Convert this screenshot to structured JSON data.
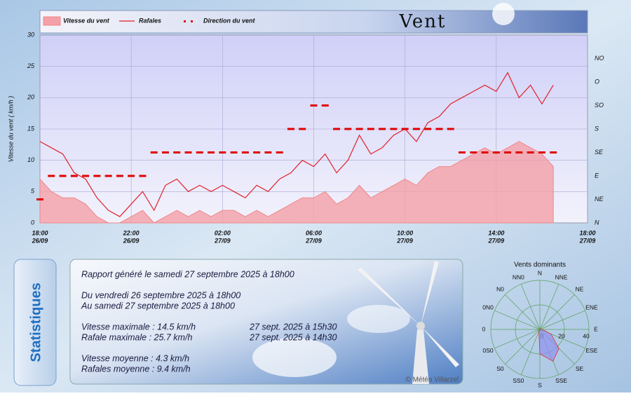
{
  "chart_data": [
    {
      "type": "wind",
      "title": "Vent",
      "ylabel": "Vitesse du vent ( km/h )",
      "ylim": [
        0,
        30
      ],
      "yticks": [
        0,
        5,
        10,
        15,
        20,
        25,
        30
      ],
      "y2ticks": [
        "N",
        "NE",
        "E",
        "SE",
        "S",
        "SO",
        "O",
        "NO"
      ],
      "grid": true,
      "xticks": [
        {
          "time": "18:00",
          "date": "26/09"
        },
        {
          "time": "22:00",
          "date": "26/09"
        },
        {
          "time": "02:00",
          "date": "27/09"
        },
        {
          "time": "06:00",
          "date": "27/09"
        },
        {
          "time": "10:00",
          "date": "27/09"
        },
        {
          "time": "14:00",
          "date": "27/09"
        },
        {
          "time": "18:00",
          "date": "27/09"
        }
      ],
      "x": [
        "26/09 18:00",
        "26/09 18:30",
        "26/09 19:00",
        "26/09 19:30",
        "26/09 20:00",
        "26/09 20:30",
        "26/09 21:00",
        "26/09 21:30",
        "26/09 22:00",
        "26/09 22:30",
        "26/09 23:00",
        "26/09 23:30",
        "27/09 00:00",
        "27/09 00:30",
        "27/09 01:00",
        "27/09 01:30",
        "27/09 02:00",
        "27/09 02:30",
        "27/09 03:00",
        "27/09 03:30",
        "27/09 04:00",
        "27/09 04:30",
        "27/09 05:00",
        "27/09 05:30",
        "27/09 06:00",
        "27/09 06:30",
        "27/09 07:00",
        "27/09 07:30",
        "27/09 08:00",
        "27/09 08:30",
        "27/09 09:00",
        "27/09 09:30",
        "27/09 10:00",
        "27/09 10:30",
        "27/09 11:00",
        "27/09 11:30",
        "27/09 12:00",
        "27/09 12:30",
        "27/09 13:00",
        "27/09 13:30",
        "27/09 14:00",
        "27/09 14:30",
        "27/09 15:00",
        "27/09 15:30",
        "27/09 16:00",
        "27/09 16:30"
      ],
      "series": [
        {
          "name": "Vitesse du vent",
          "kind": "area",
          "color": "#f4a0a8",
          "values": [
            7,
            5,
            4,
            4,
            3,
            1,
            0,
            0,
            1,
            2,
            0,
            1,
            2,
            1,
            2,
            1,
            2,
            2,
            1,
            2,
            1,
            2,
            3,
            4,
            4,
            5,
            3,
            4,
            6,
            4,
            5,
            6,
            7,
            6,
            8,
            9,
            9,
            10,
            11,
            12,
            11,
            12,
            13,
            12,
            11,
            9
          ]
        },
        {
          "name": "Rafales",
          "kind": "line",
          "color": "#e0202a",
          "values": [
            13,
            12,
            11,
            8,
            7,
            4,
            2,
            1,
            3,
            5,
            2,
            6,
            7,
            5,
            6,
            5,
            6,
            5,
            4,
            6,
            5,
            7,
            8,
            10,
            9,
            11,
            8,
            10,
            14,
            11,
            12,
            14,
            15,
            13,
            16,
            17,
            19,
            20,
            21,
            22,
            21,
            24,
            20,
            22,
            19,
            22
          ]
        },
        {
          "name": "Direction du vent",
          "kind": "dots",
          "axis": "y2",
          "color": "#e00000",
          "values": [
            "NE",
            "E",
            "E",
            "E",
            "E",
            "E",
            "E",
            "E",
            "E",
            "E",
            "SE",
            "SE",
            "SE",
            "SE",
            "SE",
            "SE",
            "SE",
            "SE",
            "SE",
            "SE",
            "SE",
            "SE",
            "S",
            "S",
            "SO",
            "SO",
            "S",
            "S",
            "S",
            "S",
            "S",
            "S",
            "S",
            "S",
            "S",
            "S",
            "S",
            "SE",
            "SE",
            "SE",
            "SE",
            "SE",
            "SE",
            "SE",
            "SE",
            "SE"
          ]
        }
      ]
    },
    {
      "type": "polar",
      "title": "Vents dominants",
      "categories": [
        "N",
        "NNE",
        "NE",
        "ENE",
        "E",
        "ESE",
        "SE",
        "SSE",
        "S",
        "SS0",
        "S0",
        "0S0",
        "0",
        "0N0",
        "N0",
        "NN0"
      ],
      "values": [
        0,
        0,
        0,
        0,
        2,
        10,
        22,
        28,
        20,
        2,
        0,
        0,
        0,
        0,
        0,
        0
      ],
      "color": "#9090f0",
      "rlim": [
        0,
        40
      ],
      "rticks": [
        0,
        20,
        40
      ]
    }
  ],
  "stats": {
    "side_title": "Statistiques",
    "generated": "Rapport généré le samedi 27 septembre 2025 à 18h00",
    "from": "Du vendredi 26 septembre 2025 à 18h00",
    "to": "Au samedi 27 septembre 2025 à 18h00",
    "max_speed": "Vitesse maximale : 14.5 km/h",
    "max_speed_date": "27 sept. 2025 à 15h30",
    "max_gust": "Rafale maximale : 25.7 km/h",
    "max_gust_date": "27 sept. 2025 à 14h30",
    "avg_speed": "Vitesse moyenne : 4.3 km/h",
    "avg_gust": "Rafales moyenne : 9.4 km/h",
    "credit": "© Météo Villarzel"
  }
}
